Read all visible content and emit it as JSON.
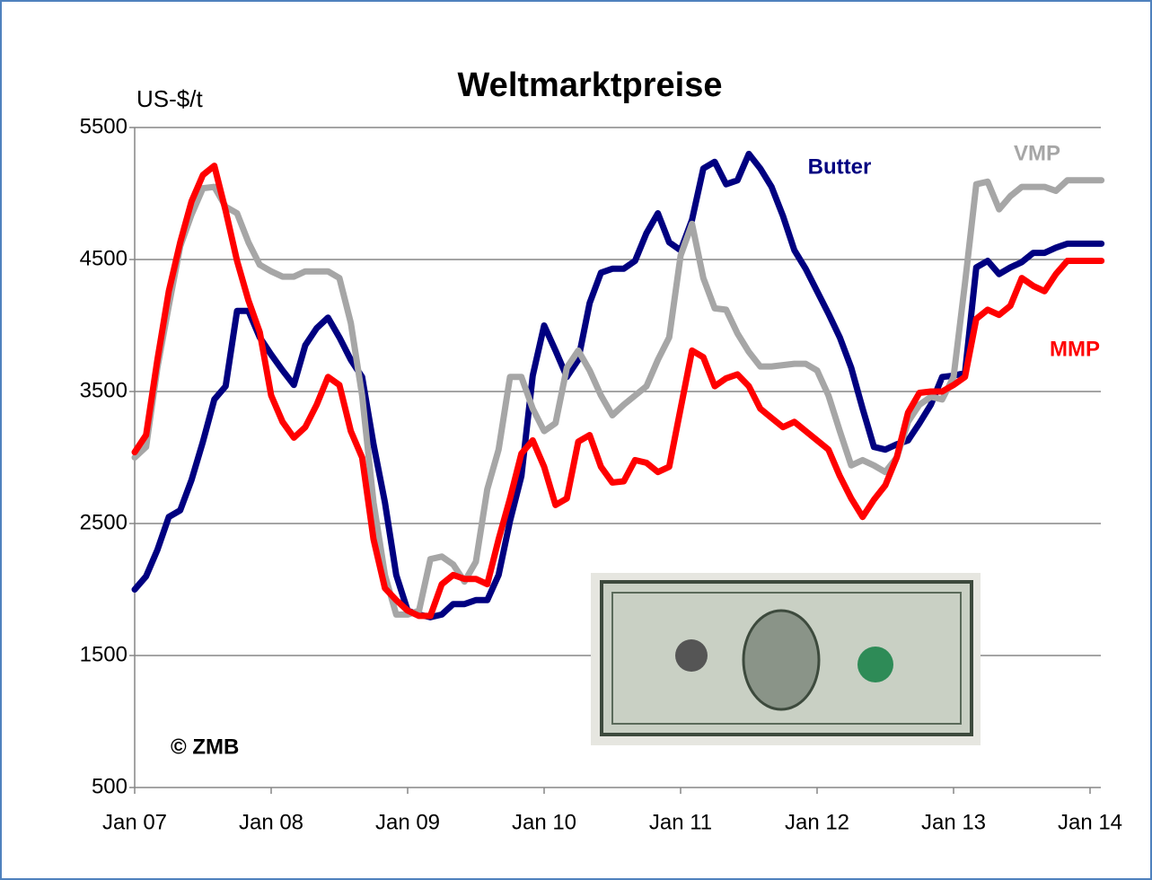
{
  "chart_data": {
    "type": "line",
    "title": "Weltmarktpreise",
    "y_label": "US-$/t",
    "annotation": "© ZMB",
    "categories": [
      "Jan 07",
      null,
      null,
      null,
      null,
      null,
      null,
      null,
      null,
      null,
      null,
      null,
      "Jan 08",
      null,
      null,
      null,
      null,
      null,
      null,
      null,
      null,
      null,
      null,
      null,
      "Jan 09",
      null,
      null,
      null,
      null,
      null,
      null,
      null,
      null,
      null,
      null,
      null,
      "Jan 10",
      null,
      null,
      null,
      null,
      null,
      null,
      null,
      null,
      null,
      null,
      null,
      "Jan 11",
      null,
      null,
      null,
      null,
      null,
      null,
      null,
      null,
      null,
      null,
      null,
      "Jan 12",
      null,
      null,
      null,
      null,
      null,
      null,
      null,
      null,
      null,
      null,
      null,
      "Jan 13",
      null,
      null,
      null,
      null,
      null,
      null,
      null,
      null,
      null,
      null,
      null,
      "Jan 14",
      null
    ],
    "ylim": [
      500,
      5500
    ],
    "yticks": [
      500,
      1500,
      2500,
      3500,
      4500,
      5500
    ],
    "grid": true,
    "series": [
      {
        "name": "Butter",
        "color": "#000080",
        "values": [
          2000,
          2100,
          2300,
          2550,
          2600,
          2830,
          3120,
          3440,
          3540,
          4110,
          4110,
          3910,
          3780,
          3660,
          3550,
          3850,
          3980,
          4060,
          3910,
          3740,
          3610,
          3100,
          2660,
          2110,
          1840,
          1810,
          1790,
          1810,
          1890,
          1890,
          1920,
          1920,
          2110,
          2520,
          2860,
          3620,
          4000,
          3810,
          3610,
          3740,
          4170,
          4400,
          4430,
          4430,
          4490,
          4700,
          4850,
          4630,
          4570,
          4800,
          5190,
          5240,
          5070,
          5100,
          5300,
          5190,
          5050,
          4830,
          4570,
          4430,
          4260,
          4090,
          3910,
          3680,
          3370,
          3080,
          3060,
          3100,
          3130,
          3260,
          3400,
          3610,
          3620,
          3640,
          4440,
          4490,
          4390,
          4440,
          4480,
          4550,
          4550,
          4590,
          4620,
          4620,
          4620,
          4620
        ]
      },
      {
        "name": "VMP",
        "color": "#a6a6a6",
        "values": [
          3000,
          3080,
          3680,
          4150,
          4600,
          4840,
          5040,
          5050,
          4900,
          4850,
          4630,
          4460,
          4410,
          4370,
          4370,
          4410,
          4410,
          4410,
          4360,
          4020,
          3470,
          2660,
          2110,
          1810,
          1810,
          1840,
          2230,
          2250,
          2190,
          2060,
          2210,
          2760,
          3060,
          3610,
          3610,
          3370,
          3200,
          3260,
          3680,
          3810,
          3660,
          3470,
          3320,
          3400,
          3470,
          3540,
          3740,
          3910,
          4530,
          4770,
          4360,
          4130,
          4120,
          3940,
          3800,
          3690,
          3690,
          3700,
          3710,
          3710,
          3660,
          3470,
          3200,
          2940,
          2980,
          2940,
          2890,
          3000,
          3270,
          3400,
          3460,
          3440,
          3610,
          4320,
          5070,
          5090,
          4880,
          4980,
          5050,
          5050,
          5050,
          5020,
          5100,
          5100,
          5100,
          5100
        ]
      },
      {
        "name": "MMP",
        "color": "#ff0000",
        "values": [
          3040,
          3170,
          3740,
          4260,
          4630,
          4940,
          5140,
          5210,
          4870,
          4490,
          4190,
          3950,
          3470,
          3270,
          3150,
          3230,
          3400,
          3610,
          3550,
          3200,
          3000,
          2380,
          2010,
          1920,
          1840,
          1800,
          1800,
          2040,
          2110,
          2080,
          2080,
          2040,
          2380,
          2690,
          3030,
          3130,
          2930,
          2640,
          2690,
          3120,
          3170,
          2930,
          2810,
          2820,
          2980,
          2960,
          2890,
          2930,
          3370,
          3810,
          3760,
          3540,
          3600,
          3630,
          3540,
          3370,
          3300,
          3230,
          3270,
          3200,
          3130,
          3060,
          2860,
          2690,
          2550,
          2680,
          2790,
          3000,
          3340,
          3490,
          3500,
          3500,
          3550,
          3610,
          4050,
          4120,
          4080,
          4150,
          4360,
          4300,
          4260,
          4390,
          4490,
          4490,
          4490,
          4490
        ]
      }
    ]
  }
}
